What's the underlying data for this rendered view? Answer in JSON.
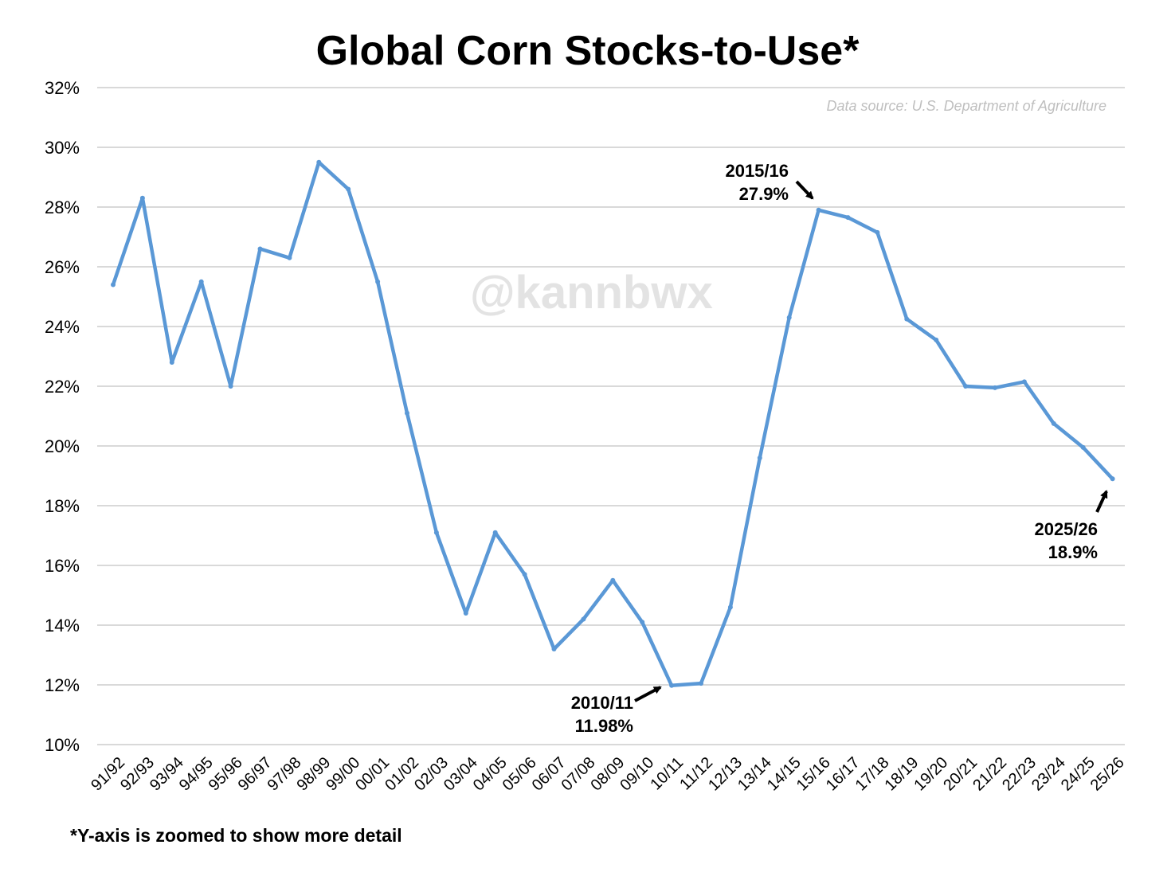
{
  "title": "Global Corn Stocks-to-Use*",
  "source": "Data source: U.S. Department of Agriculture",
  "watermark": "@kannbwx",
  "footnote": "*Y-axis is zoomed to show more detail",
  "colors": {
    "line": "#5a98d6",
    "grid": "#d9d9d9",
    "text": "#000000"
  },
  "annotations": {
    "peak": {
      "year": "2015/16",
      "value": "27.9%"
    },
    "trough": {
      "year": "2010/11",
      "value": "11.98%"
    },
    "latest": {
      "year": "2025/26",
      "value": "18.9%"
    }
  },
  "chart_data": {
    "type": "line",
    "title": "Global Corn Stocks-to-Use*",
    "xlabel": "",
    "ylabel": "",
    "ylim": [
      10,
      32
    ],
    "ytick_step": 2,
    "ytick_labels": [
      "10%",
      "12%",
      "14%",
      "16%",
      "18%",
      "20%",
      "22%",
      "24%",
      "26%",
      "28%",
      "30%",
      "32%"
    ],
    "grid": "horizontal",
    "categories": [
      "91/92",
      "92/93",
      "93/94",
      "94/95",
      "95/96",
      "96/97",
      "97/98",
      "98/99",
      "99/00",
      "00/01",
      "01/02",
      "02/03",
      "03/04",
      "04/05",
      "05/06",
      "06/07",
      "07/08",
      "08/09",
      "09/10",
      "10/11",
      "11/12",
      "12/13",
      "13/14",
      "14/15",
      "15/16",
      "16/17",
      "17/18",
      "18/19",
      "19/20",
      "20/21",
      "21/22",
      "22/23",
      "23/24",
      "24/25",
      "25/26"
    ],
    "series": [
      {
        "values": [
          25.4,
          28.3,
          22.8,
          25.5,
          22.0,
          26.6,
          26.3,
          29.5,
          28.6,
          25.5,
          21.1,
          17.1,
          14.4,
          17.1,
          15.7,
          13.2,
          14.2,
          15.5,
          14.1,
          11.98,
          12.05,
          14.6,
          19.6,
          24.3,
          27.9,
          27.65,
          27.15,
          24.25,
          23.55,
          22.0,
          21.95,
          22.15,
          20.75,
          19.95,
          18.9
        ]
      }
    ]
  }
}
